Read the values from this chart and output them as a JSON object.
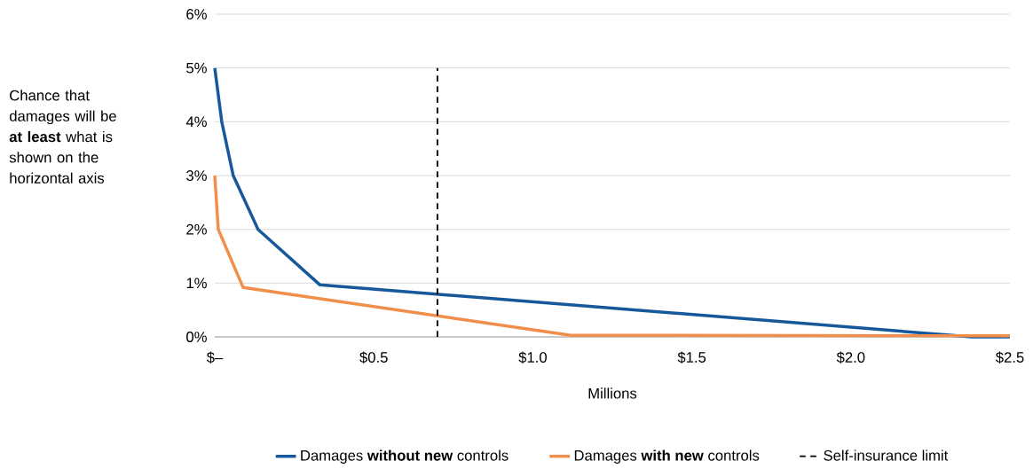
{
  "chart_data": {
    "type": "line",
    "xlabel": "Millions",
    "ylabel": "Chance that damages will be **at least** what is shown on the horizontal axis",
    "series": [
      {
        "name": "Damages **without new** controls",
        "color": "#17589a",
        "x": [
          0,
          0.022,
          0.058,
          0.136,
          0.33,
          2.38,
          2.5
        ],
        "values": [
          5,
          4,
          3,
          2,
          0.97,
          0,
          0
        ]
      },
      {
        "name": "Damages **with new** controls",
        "color": "#f28e4b",
        "x": [
          0,
          0.011,
          0.089,
          1.12,
          2.5
        ],
        "values": [
          3,
          2,
          0.92,
          0.03,
          0.02
        ]
      }
    ],
    "xlim": [
      0,
      2.5
    ],
    "ylim": [
      0,
      6
    ],
    "xticks": [
      {
        "value": 0,
        "label": "$–"
      },
      {
        "value": 0.5,
        "label": "$0.5"
      },
      {
        "value": 1,
        "label": "$1.0"
      },
      {
        "value": 1.5,
        "label": "$1.5"
      },
      {
        "value": 2,
        "label": "$2.0"
      },
      {
        "value": 2.5,
        "label": "$2.5"
      }
    ],
    "yticks": [
      {
        "value": 0,
        "label": "0%"
      },
      {
        "value": 1,
        "label": "1%"
      },
      {
        "value": 2,
        "label": "2%"
      },
      {
        "value": 3,
        "label": "3%"
      },
      {
        "value": 4,
        "label": "4%"
      },
      {
        "value": 5,
        "label": "5%"
      },
      {
        "value": 6,
        "label": "6%"
      }
    ],
    "ref_lines": [
      {
        "axis": "x",
        "value": 0.7,
        "label": "Self-insurance limit",
        "color": "#000000",
        "line_style": "dashed"
      }
    ],
    "grid": "y",
    "legend": "bottom",
    "line_style": "solid"
  }
}
